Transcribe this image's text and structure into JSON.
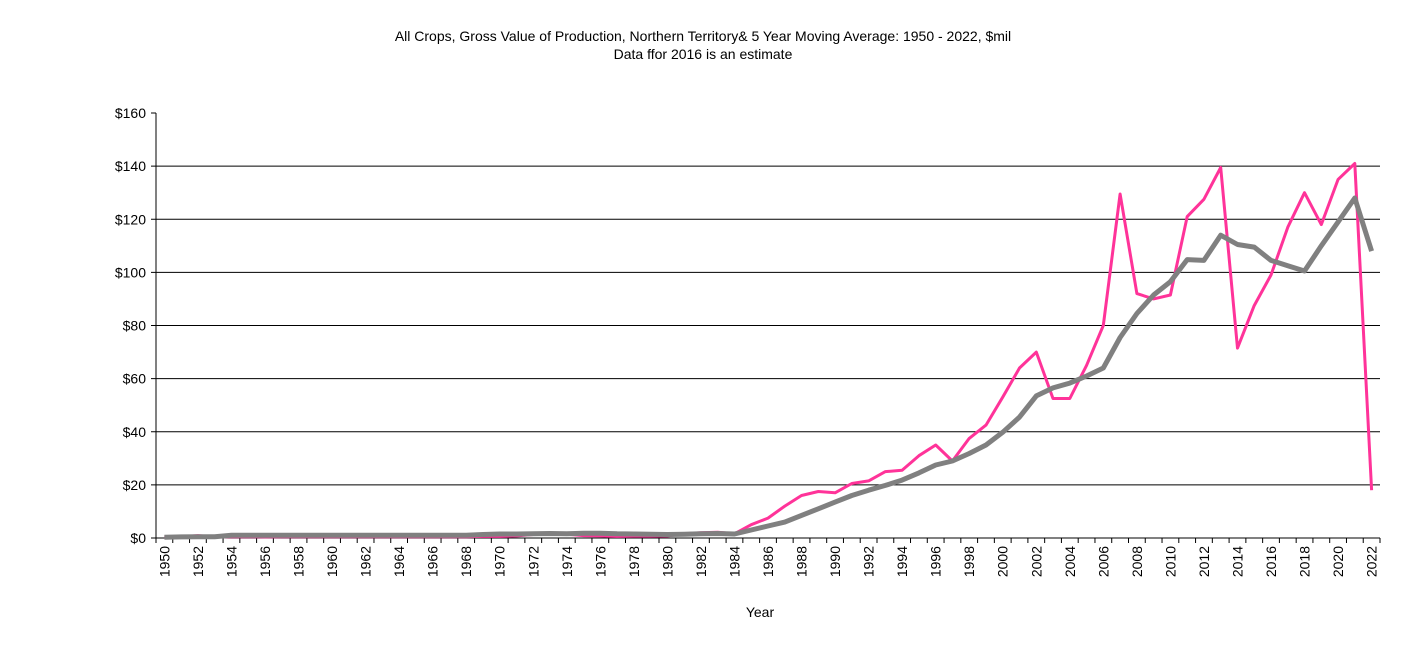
{
  "chart_data": {
    "type": "line",
    "title": "All Crops, Gross Value of Production,  Northern Territory& 5 Year Moving Average: 1950 - 2022, $mil",
    "subtitle": "Data ffor 2016 is an estimate",
    "xlabel": "Year",
    "ylabel": "",
    "ylim": [
      0,
      160
    ],
    "y_ticks": [
      0,
      20,
      40,
      60,
      80,
      100,
      120,
      140,
      160
    ],
    "y_tick_labels": [
      "$0",
      "$20",
      "$40",
      "$60",
      "$80",
      "$100",
      "$120",
      "$140",
      "$160"
    ],
    "grid": "horizontal",
    "legend": "none",
    "x": [
      1950,
      1951,
      1952,
      1953,
      1954,
      1955,
      1956,
      1957,
      1958,
      1959,
      1960,
      1961,
      1962,
      1963,
      1964,
      1965,
      1966,
      1967,
      1968,
      1969,
      1970,
      1971,
      1972,
      1973,
      1974,
      1975,
      1976,
      1977,
      1978,
      1979,
      1980,
      1981,
      1982,
      1983,
      1984,
      1985,
      1986,
      1987,
      1988,
      1989,
      1990,
      1991,
      1992,
      1993,
      1994,
      1995,
      1996,
      1997,
      1998,
      1999,
      2000,
      2001,
      2002,
      2003,
      2004,
      2005,
      2006,
      2007,
      2008,
      2009,
      2010,
      2011,
      2012,
      2013,
      2014,
      2015,
      2016,
      2017,
      2018,
      2019,
      2020,
      2021,
      2022
    ],
    "x_tick_labels": [
      "1950",
      "1952",
      "1954",
      "1956",
      "1958",
      "1960",
      "1962",
      "1964",
      "1966",
      "1968",
      "1970",
      "1972",
      "1974",
      "1976",
      "1978",
      "1980",
      "1982",
      "1984",
      "1986",
      "1988",
      "1990",
      "1992",
      "1994",
      "1996",
      "1998",
      "2000",
      "2002",
      "2004",
      "2006",
      "2008",
      "2010",
      "2012",
      "2014",
      "2016",
      "2018",
      "2020",
      "2022"
    ],
    "series": [
      {
        "name": "All Crops GVP",
        "color": "#ff3399",
        "values": [
          0.3,
          0.5,
          0.9,
          0.4,
          0.5,
          0.5,
          0.4,
          0.5,
          0.5,
          0.5,
          0.5,
          0.5,
          0.5,
          0.5,
          0.5,
          0.5,
          0.5,
          0.5,
          0.5,
          0.6,
          0.6,
          0.8,
          1.3,
          1.7,
          1.4,
          0.9,
          0.8,
          0.6,
          0.7,
          0.7,
          0.8,
          1.6,
          2.0,
          2.2,
          1.6,
          5.0,
          7.5,
          12.0,
          16.0,
          17.5,
          17.0,
          20.5,
          21.5,
          25.0,
          25.5,
          31.0,
          35.0,
          29.0,
          37.5,
          42.5,
          53.0,
          64.0,
          70.0,
          52.5,
          52.5,
          65.0,
          80.0,
          129.5,
          92.0,
          90.0,
          91.5,
          121.0,
          127.5,
          139.5,
          71.5,
          87.5,
          99.0,
          117.0,
          130.0,
          118.0,
          135.0,
          141.0,
          18.0
        ]
      },
      {
        "name": "5 Year Moving Average",
        "color": "#808080",
        "values": [
          0.3,
          0.4,
          0.5,
          0.5,
          1.0,
          1.0,
          1.0,
          1.0,
          1.0,
          1.0,
          1.0,
          1.0,
          1.0,
          1.0,
          1.0,
          1.0,
          1.0,
          1.0,
          1.0,
          1.3,
          1.5,
          1.5,
          1.6,
          1.7,
          1.6,
          1.8,
          1.8,
          1.6,
          1.5,
          1.4,
          1.3,
          1.4,
          1.6,
          1.7,
          1.5,
          3.0,
          4.5,
          6.0,
          8.5,
          11.0,
          13.5,
          16.0,
          18.0,
          19.8,
          21.8,
          24.5,
          27.5,
          29.0,
          31.8,
          35.0,
          39.8,
          45.5,
          53.5,
          56.5,
          58.3,
          61.0,
          64.0,
          75.5,
          84.5,
          91.5,
          96.5,
          104.8,
          104.5,
          114.0,
          110.5,
          109.5,
          104.5,
          102.5,
          100.5,
          110.0,
          119.0,
          128.0,
          108.0
        ]
      }
    ]
  }
}
